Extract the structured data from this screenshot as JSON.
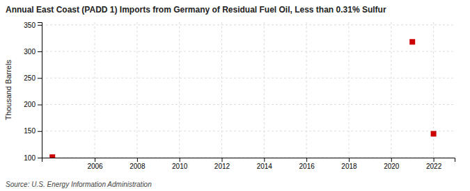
{
  "chart_data": {
    "type": "scatter",
    "title": "Annual East Coast (PADD 1) Imports from Germany of Residual Fuel Oil, Less than 0.31% Sulfur",
    "ylabel": "Thousand Barrels",
    "source": "Source: U.S. Energy Information Administration",
    "x": [
      2004,
      2021,
      2022
    ],
    "values": [
      101,
      318,
      145
    ],
    "color": "#cc0000",
    "marker": "square",
    "xlim": [
      2003.5,
      2023
    ],
    "ylim": [
      100,
      355
    ],
    "xticks": [
      2006,
      2008,
      2010,
      2012,
      2014,
      2016,
      2018,
      2020,
      2022
    ],
    "yticks": [
      100,
      150,
      200,
      250,
      300,
      350
    ],
    "grid": true
  }
}
